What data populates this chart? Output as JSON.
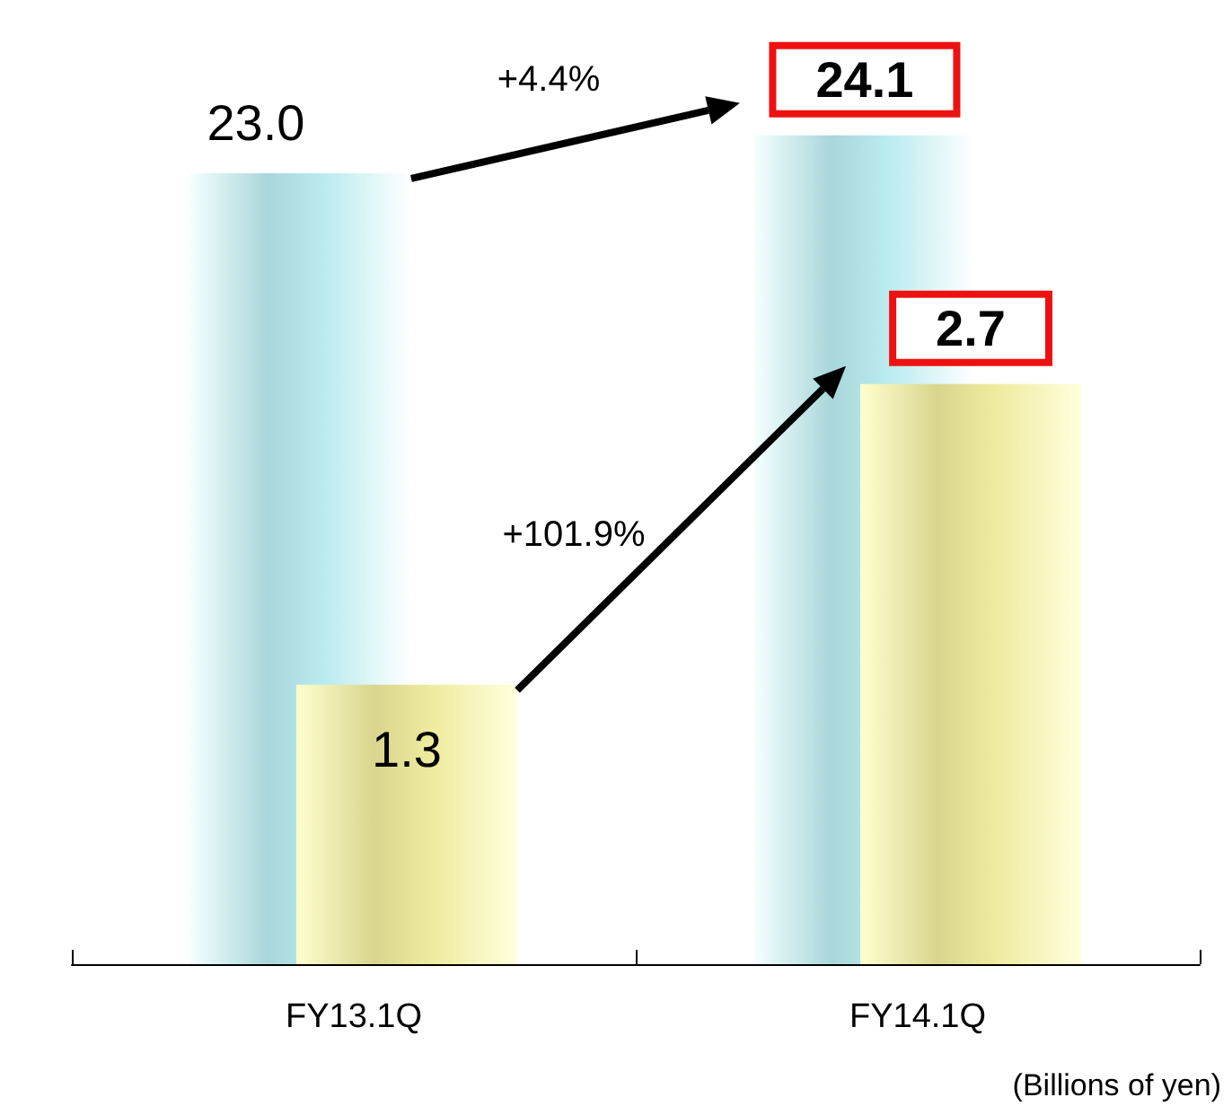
{
  "chart_data": {
    "type": "bar",
    "categories": [
      "FY13.1Q",
      "FY14.1Q"
    ],
    "series": [
      {
        "color": "#a9d6da",
        "values": [
          23.0,
          24.1
        ],
        "value_labels": [
          "23.0",
          "24.1"
        ]
      },
      {
        "color": "#d9d58f",
        "values": [
          1.3,
          2.7
        ],
        "value_labels": [
          "1.3",
          "2.7"
        ],
        "axis": "y2"
      }
    ],
    "tick_labels": "x",
    "annotations": [
      "+4.4%",
      "+101.9%",
      "(Billions of yen)"
    ]
  }
}
